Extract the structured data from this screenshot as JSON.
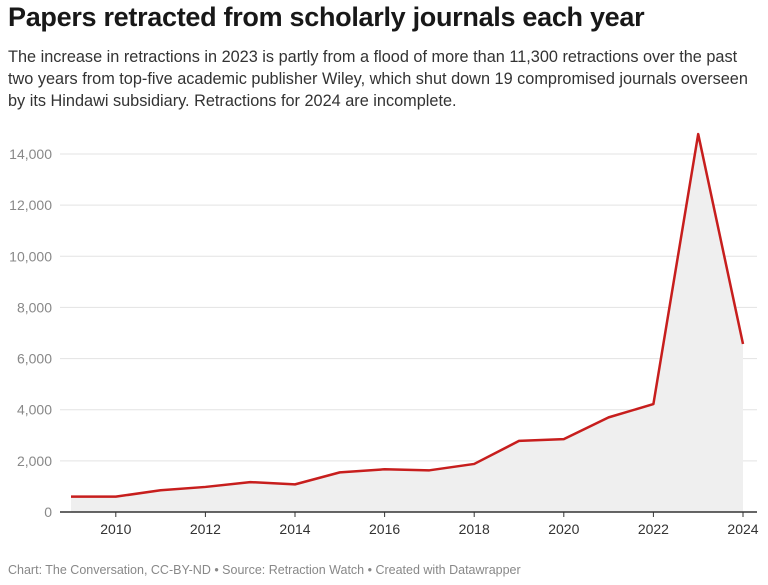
{
  "title": "Papers retracted from scholarly journals each year",
  "subtitle": "The increase in retractions in 2023 is partly from a flood of more than 11,300 retractions over the past two years from top-five academic publisher Wiley, which shut down 19 compromised journals overseen by its Hindawi subsidiary. Retractions for 2024 are incomplete.",
  "footer": "Chart: The Conversation, CC-BY-ND • Source: Retraction Watch • Created with Datawrapper",
  "chart_data": {
    "type": "area",
    "x": [
      2009,
      2010,
      2011,
      2012,
      2013,
      2014,
      2015,
      2016,
      2017,
      2018,
      2019,
      2020,
      2021,
      2022,
      2023,
      2024
    ],
    "values": [
      600,
      600,
      850,
      980,
      1170,
      1080,
      1550,
      1670,
      1630,
      1880,
      2780,
      2850,
      3700,
      4220,
      14780,
      6570
    ],
    "xlim": [
      2009,
      2024
    ],
    "ylim": [
      0,
      14000
    ],
    "xticks": [
      "2010",
      "2012",
      "2014",
      "2016",
      "2018",
      "2020",
      "2022",
      "2024"
    ],
    "yticks": [
      "0",
      "2,000",
      "4,000",
      "6,000",
      "8,000",
      "10,000",
      "12,000",
      "14,000"
    ],
    "grid": true,
    "line_color": "#c71e1d",
    "fill_color": "#efefef"
  }
}
